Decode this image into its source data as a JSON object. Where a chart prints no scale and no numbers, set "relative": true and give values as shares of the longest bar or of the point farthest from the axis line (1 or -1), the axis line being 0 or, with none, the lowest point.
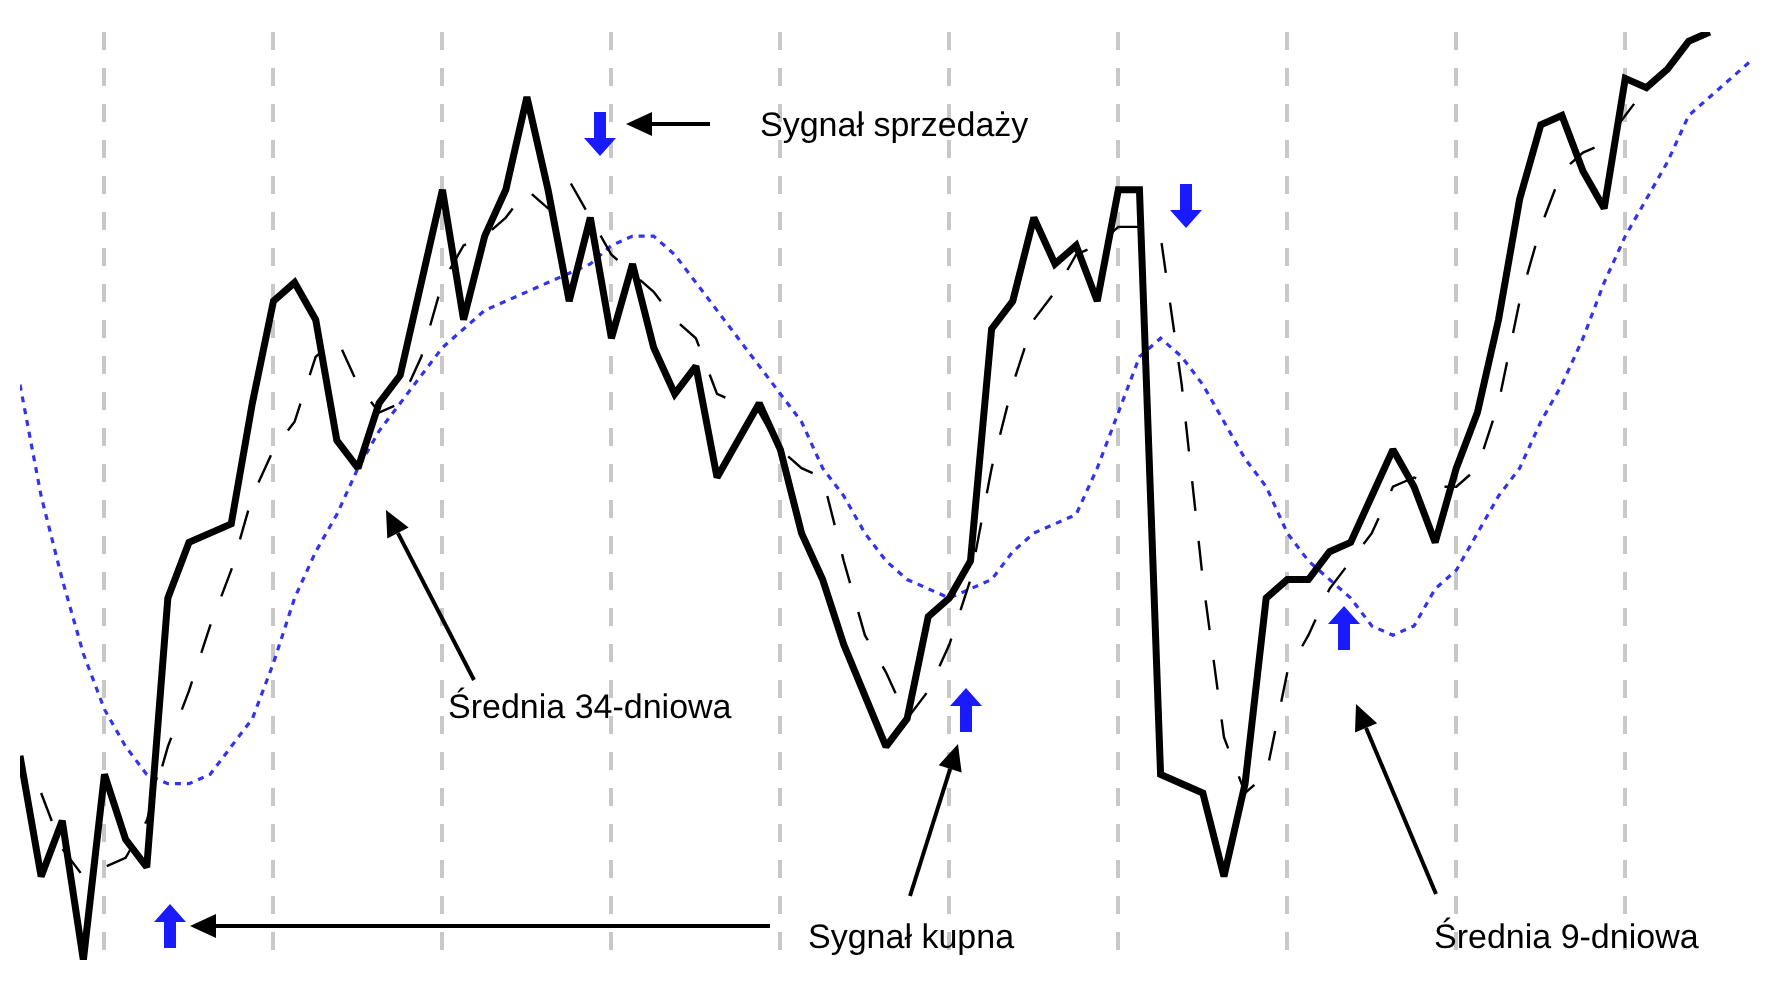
{
  "chart_data": {
    "type": "line",
    "relative": true,
    "grid": "x",
    "categories": [
      null,
      null,
      null,
      null,
      null,
      null,
      null,
      null,
      null,
      null,
      null,
      null,
      null,
      null,
      null,
      null,
      null,
      null,
      null,
      null,
      null,
      null,
      null,
      null,
      null,
      null,
      null,
      null,
      null,
      null,
      null,
      null,
      null,
      null,
      null,
      null,
      null,
      null,
      null,
      null,
      null,
      null,
      null,
      null,
      null,
      null,
      null,
      null,
      null,
      null,
      null,
      null,
      null,
      null,
      null,
      null,
      null,
      null,
      null,
      null,
      null,
      null,
      null,
      null,
      null,
      null,
      null,
      null,
      null,
      null,
      null,
      null,
      null,
      null,
      null,
      null,
      null,
      null,
      null,
      null,
      null,
      null,
      null
    ],
    "series": [
      {
        "color": "#000000",
        "line_style": "solid",
        "values": [
          0.22,
          0.09,
          0.15,
          0,
          0.2,
          0.13,
          0.1,
          0.39,
          0.45,
          0.46,
          0.47,
          0.6,
          0.71,
          0.73,
          0.69,
          0.56,
          0.53,
          0.6,
          0.63,
          0.73,
          0.83,
          0.69,
          0.78,
          0.83,
          0.93,
          0.83,
          0.71,
          0.8,
          0.67,
          0.75,
          0.66,
          0.61,
          0.64,
          0.52,
          0.56,
          0.6,
          0.55,
          0.46,
          0.41,
          0.34,
          null,
          0.23,
          0.26,
          0.37,
          0.39,
          0.43,
          0.68,
          0.71,
          0.8,
          0.75,
          0.77,
          0.71,
          0.83,
          0.83,
          0.2,
          0.19,
          0.18,
          0.09,
          0.19,
          0.39,
          0.41,
          0.41,
          0.44,
          0.45,
          0.5,
          0.55,
          0.51,
          0.45,
          0.53,
          0.59,
          0.69,
          0.82,
          0.9,
          0.91,
          0.85,
          0.81,
          0.95,
          0.94,
          0.96,
          0.99,
          1,
          null,
          null
        ]
      },
      {
        "color": "#000000",
        "line_style": "dashed",
        "values": [
          null,
          0.18,
          0.12,
          0.09,
          0.1,
          0.11,
          0.15,
          0.23,
          0.29,
          0.36,
          0.42,
          0.5,
          0.55,
          0.58,
          0.65,
          0.67,
          0.62,
          0.59,
          0.6,
          0.65,
          0.73,
          0.77,
          0.78,
          0.8,
          0.83,
          0.81,
          0.84,
          0.8,
          0.76,
          0.74,
          0.72,
          0.69,
          0.67,
          0.61,
          0.6,
          0.59,
          0.55,
          0.53,
          0.52,
          0.43,
          0.35,
          0.31,
          0.26,
          0.29,
          0.34,
          0.41,
          0.53,
          0.62,
          0.69,
          0.72,
          0.76,
          0.77,
          0.79,
          0.79,
          0.78,
          0.62,
          0.41,
          0.24,
          0.18,
          0.2,
          0.31,
          0.35,
          0.4,
          0.43,
          0.46,
          0.51,
          0.52,
          0.51,
          0.51,
          0.53,
          0.6,
          0.71,
          0.79,
          0.85,
          0.87,
          0.88,
          0.91,
          0.94,
          0.96,
          0.98,
          null,
          null,
          null
        ]
      },
      {
        "color": "#3333ee",
        "line_style": "dotted",
        "values": [
          0.62,
          0.5,
          0.41,
          0.33,
          0.27,
          0.23,
          0.2,
          0.19,
          0.19,
          0.2,
          0.23,
          0.26,
          0.32,
          0.39,
          0.44,
          0.48,
          0.53,
          0.57,
          0.6,
          0.63,
          0.66,
          0.68,
          0.7,
          0.71,
          0.72,
          0.73,
          0.74,
          0.75,
          0.77,
          0.78,
          0.78,
          0.76,
          0.73,
          0.7,
          0.67,
          0.64,
          0.61,
          0.58,
          0.53,
          0.5,
          0.46,
          0.43,
          0.41,
          0.4,
          0.39,
          0.4,
          0.41,
          0.44,
          0.46,
          0.47,
          0.48,
          0.53,
          0.59,
          0.65,
          0.67,
          0.65,
          0.62,
          0.58,
          0.54,
          0.51,
          0.46,
          0.43,
          0.41,
          0.39,
          0.36,
          0.35,
          0.36,
          0.4,
          0.42,
          0.46,
          0.5,
          0.53,
          0.58,
          0.62,
          0.67,
          0.73,
          0.78,
          0.82,
          0.86,
          0.91,
          0.93,
          0.95,
          0.97
        ]
      }
    ],
    "annotations": [
      "Sygnał sprzedaży",
      "Średnia 34-dniowa",
      "Sygnał kupna",
      "Średnia 9-dniowa"
    ]
  }
}
